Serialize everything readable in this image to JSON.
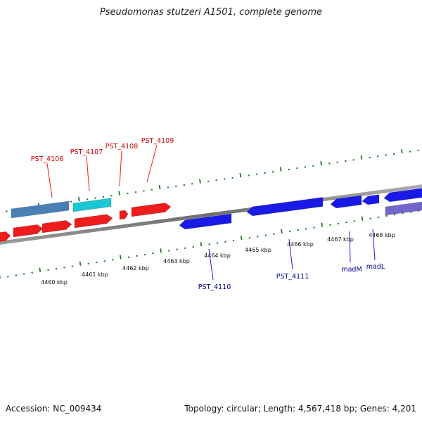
{
  "title": "Pseudomonas stutzeri A1501, complete genome",
  "footer": {
    "accession": "Accession: NC_009434",
    "stats": "Topology: circular; Length: 4,567,418 bp; Genes: 4,201"
  },
  "colors": {
    "forward_strand": "#ee1c1c",
    "reverse_strand": "#1a1ae6",
    "steelblue_gene": "#4a7fb5",
    "cyan_gene": "#19c8d2",
    "lavender_gene": "#7266cc",
    "backbone": "#808080",
    "ticks": "#1f7a1f",
    "forward_label": "#cc0000",
    "reverse_label": "#00008b"
  },
  "scale_labels": [
    "4460 kbp",
    "4461 kbp",
    "4462 kbp",
    "4463 kbp",
    "4464 kbp",
    "4465 kbp",
    "4466 kbp",
    "4467 kbp",
    "4468 kbp"
  ],
  "gene_labels": {
    "forward": [
      "PST_4106",
      "PST_4107",
      "PST_4108",
      "PST_4109"
    ],
    "reverse": [
      "PST_4110",
      "PST_4111",
      "madM",
      "madL"
    ]
  }
}
